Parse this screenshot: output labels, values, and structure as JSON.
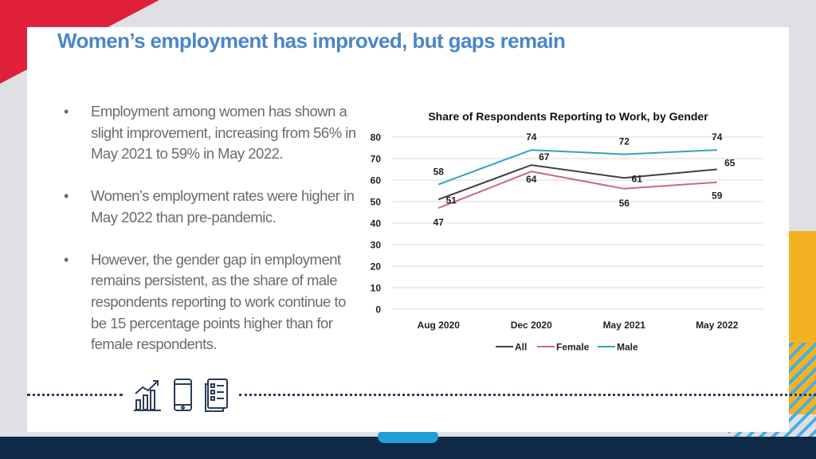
{
  "slide": {
    "title": "Women’s employment has improved, but gaps remain",
    "bullets": [
      "Employment among women has shown a slight improvement, increasing from 56% in May 2021 to 59% in May 2022.",
      "Women’s employment rates were higher in May 2022 than pre-pandemic.",
      "However, the gender gap in employment remains persistent, as the share of male respondents reporting to work continue to be 15 percentage points higher than for female respondents."
    ],
    "bullet_marker": "•",
    "icons": [
      "growth-chart-icon",
      "mobile-phone-icon",
      "checklist-document-icon"
    ]
  },
  "colors": {
    "title": "#4a86c8",
    "accent_red": "#e0203a",
    "accent_yellow": "#f4b223",
    "accent_blue": "#1e9fd8",
    "footer": "#0e2a47"
  },
  "chart_data": {
    "type": "line",
    "title": "Share of Respondents Reporting to Work, by Gender",
    "categories": [
      "Aug 2020",
      "Dec 2020",
      "May 2021",
      "May 2022"
    ],
    "series": [
      {
        "name": "All",
        "values": [
          51,
          67,
          61,
          65
        ],
        "color": "#404040"
      },
      {
        "name": "Female",
        "values": [
          47,
          64,
          56,
          59
        ],
        "color": "#c9678a"
      },
      {
        "name": "Male",
        "values": [
          58,
          74,
          72,
          74
        ],
        "color": "#2fa3bf"
      }
    ],
    "ylim": [
      0,
      80
    ],
    "yticks": [
      0,
      10,
      20,
      30,
      40,
      50,
      60,
      70,
      80
    ],
    "grid": true,
    "legend": "bottom",
    "xlabel": "",
    "ylabel": ""
  }
}
